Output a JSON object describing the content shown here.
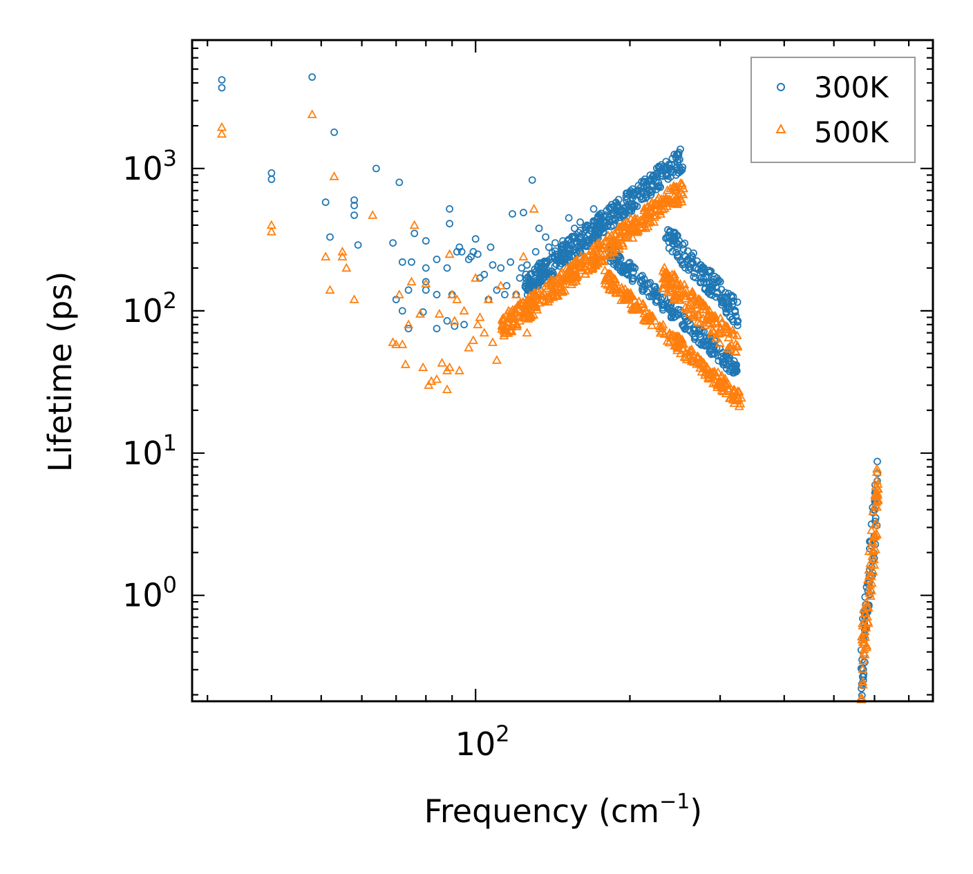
{
  "chart_data": {
    "type": "scatter",
    "title": "",
    "xlabel": "Frequency (cm",
    "xlabel_sup": "−1",
    "xlabel_tail": ")",
    "ylabel": "Lifetime (ps)",
    "xscale": "log",
    "yscale": "log",
    "xlim": [
      28,
      780
    ],
    "ylim": [
      0.18,
      8000
    ],
    "x_ticks": [
      {
        "value": 100,
        "base": "10",
        "exp": "2"
      }
    ],
    "y_ticks": [
      {
        "value": 1,
        "base": "10",
        "exp": "0"
      },
      {
        "value": 10,
        "base": "10",
        "exp": "1"
      },
      {
        "value": 100,
        "base": "10",
        "exp": "2"
      },
      {
        "value": 1000,
        "base": "10",
        "exp": "3"
      }
    ],
    "legend": {
      "placement": "top-right"
    },
    "series": [
      {
        "name": "300K",
        "marker": "circle",
        "color": "#1f77b4",
        "clusters": [
          {
            "x": [
              32,
              32,
              40,
              40,
              48,
              53,
              58,
              58,
              58,
              59,
              64,
              74,
              80,
              80,
              80,
              84,
              84
            ],
            "y": [
              4200,
              3700,
              930,
              840,
              4400,
              1800,
              600,
              550,
              470,
              290,
              1000,
              140,
              310,
              140,
              200,
              230,
              130
            ]
          },
          {
            "x": [
              51,
              52,
              69,
              70,
              71,
              72,
              72,
              74,
              75,
              76,
              79,
              80,
              84,
              88,
              88,
              89,
              89,
              90,
              91,
              92,
              93,
              94,
              95,
              97,
              98,
              99,
              100,
              101
            ],
            "y": [
              580,
              330,
              300,
              120,
              800,
              220,
              100,
              75,
              220,
              350,
              98,
              160,
              75,
              200,
              85,
              520,
              410,
              130,
              78,
              260,
              280,
              260,
              80,
              230,
              240,
              260,
              320,
              250
            ]
          },
          {
            "x": [
              102,
              104,
              106,
              107,
              108,
              110,
              112,
              114,
              115,
              117,
              118,
              120,
              122,
              123,
              124,
              126,
              128,
              129,
              130,
              131,
              133,
              134,
              136,
              137,
              139,
              141,
              143,
              145,
              148,
              150
            ],
            "y": [
              170,
              180,
              120,
              280,
              210,
              140,
              200,
              130,
              150,
              220,
              480,
              130,
              170,
              200,
              490,
              210,
              180,
              830,
              150,
              260,
              380,
              160,
              200,
              330,
              280,
              150,
              300,
              230,
              310,
              260
            ]
          },
          {
            "x": [
              152,
              156,
              160,
              165,
              170,
              175
            ],
            "y": [
              450,
              380,
              420,
              400,
              520,
              470
            ]
          }
        ],
        "band_up": {
          "x0": 125,
          "x1": 255,
          "y0": 150,
          "y1": 1200
        },
        "band_down": {
          "x0": 182,
          "x1": 325,
          "y0": 260,
          "y1": 38
        },
        "band_mid": {
          "x0": 235,
          "x1": 325,
          "y0": 350,
          "y1": 95
        },
        "band_high": {
          "x0": 565,
          "x1": 610,
          "y0": 0.3,
          "y1": 6.5
        }
      },
      {
        "name": "500K",
        "marker": "triangle",
        "color": "#ff7f0e",
        "clusters": [
          {
            "x": [
              32,
              32,
              40,
              40,
              48,
              51,
              52,
              53,
              55,
              55,
              56,
              58
            ],
            "y": [
              1950,
              1750,
              400,
              360,
              2400,
              240,
              140,
              880,
              260,
              240,
              200,
              120
            ]
          },
          {
            "x": [
              63,
              69,
              70,
              71,
              72,
              73,
              74,
              75,
              76,
              78,
              79,
              80,
              81,
              82,
              84,
              85,
              86,
              88,
              88,
              89,
              89,
              90,
              91,
              92,
              93,
              95,
              97,
              99,
              100,
              101
            ],
            "y": [
              470,
              60,
              58,
              130,
              58,
              42,
              80,
              160,
              400,
              95,
              40,
              155,
              30,
              32,
              33,
              95,
              43,
              28,
              38,
              250,
              40,
              130,
              85,
              120,
              38,
              100,
              55,
              62,
              170,
              80
            ]
          },
          {
            "x": [
              102,
              104,
              106,
              108,
              110,
              112,
              114,
              116,
              118,
              120,
              122,
              124,
              126,
              128,
              130
            ],
            "y": [
              90,
              70,
              120,
              60,
              45,
              150,
              75,
              100,
              90,
              130,
              85,
              240,
              70,
              110,
              520
            ]
          }
        ],
        "band_up": {
          "x0": 112,
          "x1": 255,
          "y0": 75,
          "y1": 720
        },
        "band_down": {
          "x0": 178,
          "x1": 330,
          "y0": 175,
          "y1": 23
        },
        "band_mid": {
          "x0": 230,
          "x1": 325,
          "y0": 180,
          "y1": 55
        },
        "band_high": {
          "x0": 565,
          "x1": 610,
          "y0": 0.3,
          "y1": 5.5
        }
      }
    ]
  }
}
